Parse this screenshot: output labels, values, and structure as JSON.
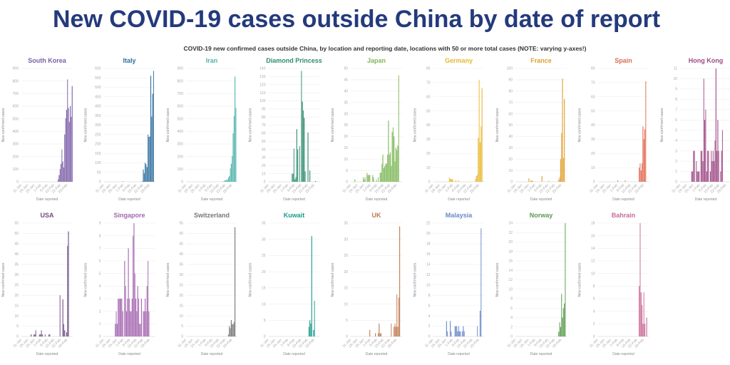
{
  "title": "New COVID-19 cases outside China by date of report",
  "subtitle": "COVID-19 new confirmed cases outside China, by location and reporting date, locations with 50 or more total cases (NOTE: varying y-axes!)",
  "chart_data": {
    "type": "bar",
    "xlabel": "Date reported",
    "ylabel": "New confirmed cases",
    "x_tick_labels": [
      "11-Jan",
      "18-Jan",
      "25-Jan",
      "1-Feb",
      "8-Feb",
      "15-Feb",
      "22-Feb",
      "29-Feb"
    ],
    "categories": [
      "11-Jan",
      "12-Jan",
      "13-Jan",
      "14-Jan",
      "15-Jan",
      "16-Jan",
      "17-Jan",
      "18-Jan",
      "19-Jan",
      "20-Jan",
      "21-Jan",
      "22-Jan",
      "23-Jan",
      "24-Jan",
      "25-Jan",
      "26-Jan",
      "27-Jan",
      "28-Jan",
      "29-Jan",
      "30-Jan",
      "31-Jan",
      "1-Feb",
      "2-Feb",
      "3-Feb",
      "4-Feb",
      "5-Feb",
      "6-Feb",
      "7-Feb",
      "8-Feb",
      "9-Feb",
      "10-Feb",
      "11-Feb",
      "12-Feb",
      "13-Feb",
      "14-Feb",
      "15-Feb",
      "16-Feb",
      "17-Feb",
      "18-Feb",
      "19-Feb",
      "20-Feb",
      "21-Feb",
      "22-Feb",
      "23-Feb",
      "24-Feb",
      "25-Feb",
      "26-Feb",
      "27-Feb",
      "28-Feb",
      "29-Feb",
      "1-Mar",
      "2-Mar",
      "3-Mar",
      "4-Mar",
      "5-Mar"
    ],
    "grid": true,
    "panels": [
      {
        "name": "South Korea",
        "color": "#7b5ea7",
        "ylim": [
          0,
          900
        ],
        "ystep": 100,
        "values": {
          "1-Feb": 1,
          "5-Feb": 1,
          "18-Feb": 1,
          "19-Feb": 20,
          "20-Feb": 53,
          "21-Feb": 100,
          "22-Feb": 142,
          "23-Feb": 256,
          "24-Feb": 161,
          "25-Feb": 114,
          "26-Feb": 376,
          "27-Feb": 505,
          "28-Feb": 571,
          "29-Feb": 813,
          "1-Mar": 586,
          "2-Mar": 476,
          "3-Mar": 600,
          "4-Mar": 516,
          "5-Mar": 760
        }
      },
      {
        "name": "Italy",
        "color": "#2f6f9f",
        "ylim": [
          0,
          600
        ],
        "ystep": 50,
        "values": {
          "31-Jan": 2,
          "21-Feb": 3,
          "22-Feb": 65,
          "23-Feb": 45,
          "24-Feb": 100,
          "25-Feb": 93,
          "26-Feb": 78,
          "27-Feb": 250,
          "28-Feb": 238,
          "29-Feb": 240,
          "1-Mar": 561,
          "2-Mar": 345,
          "3-Mar": 466,
          "4-Mar": 587
        }
      },
      {
        "name": "Iran",
        "color": "#4fb3aa",
        "ylim": [
          0,
          900
        ],
        "ystep": 100,
        "values": {
          "19-Feb": 2,
          "20-Feb": 3,
          "21-Feb": 13,
          "22-Feb": 10,
          "23-Feb": 15,
          "24-Feb": 18,
          "25-Feb": 34,
          "26-Feb": 45,
          "27-Feb": 106,
          "28-Feb": 143,
          "29-Feb": 205,
          "1-Mar": 385,
          "2-Mar": 523,
          "3-Mar": 835,
          "4-Mar": 586
        }
      },
      {
        "name": "Diamond Princess",
        "color": "#2e8b6e",
        "ylim": [
          0,
          140
        ],
        "ystep": 10,
        "values": {
          "5-Feb": 10,
          "6-Feb": 10,
          "7-Feb": 41,
          "8-Feb": 3,
          "9-Feb": 6,
          "10-Feb": 65,
          "11-Feb": 40,
          "13-Feb": 44,
          "15-Feb": 137,
          "16-Feb": 99,
          "17-Feb": 88,
          "18-Feb": 79,
          "19-Feb": 13,
          "22-Feb": 61,
          "24-Feb": 14,
          "1-Mar": 1
        }
      },
      {
        "name": "Japan",
        "color": "#7fb85a",
        "ylim": [
          0,
          50
        ],
        "ystep": 5,
        "values": {
          "15-Jan": 1,
          "24-Jan": 2,
          "25-Jan": 1,
          "26-Jan": 2,
          "28-Jan": 4,
          "29-Jan": 3,
          "30-Jan": 3,
          "31-Jan": 3,
          "3-Feb": 3,
          "4-Feb": 2,
          "7-Feb": 1,
          "9-Feb": 2,
          "11-Feb": 4,
          "12-Feb": 4,
          "13-Feb": 8,
          "14-Feb": 12,
          "15-Feb": 6,
          "16-Feb": 7,
          "17-Feb": 8,
          "18-Feb": 8,
          "19-Feb": 12,
          "20-Feb": 27,
          "21-Feb": 12,
          "22-Feb": 13,
          "23-Feb": 7,
          "24-Feb": 22,
          "25-Feb": 24,
          "26-Feb": 20,
          "27-Feb": 9,
          "28-Feb": 15,
          "29-Feb": 14,
          "1-Mar": 16,
          "2-Mar": 47
        }
      },
      {
        "name": "Germany",
        "color": "#e8b830",
        "ylim": [
          0,
          80
        ],
        "ystep": 10,
        "values": {
          "28-Jan": 3,
          "29-Jan": 2,
          "30-Jan": 2,
          "31-Jan": 2,
          "1-Feb": 1,
          "4-Feb": 1,
          "7-Feb": 1,
          "25-Feb": 2,
          "26-Feb": 4,
          "27-Feb": 5,
          "28-Feb": 31,
          "29-Feb": 72,
          "1-Mar": 28,
          "2-Mar": 39,
          "3-Mar": 66
        }
      },
      {
        "name": "France",
        "color": "#e0a030",
        "ylim": [
          0,
          100
        ],
        "ystep": 10,
        "values": {
          "25-Jan": 3,
          "27-Jan": 1,
          "28-Jan": 1,
          "29-Jan": 1,
          "8-Feb": 5,
          "15-Feb": 1,
          "26-Feb": 2,
          "27-Feb": 4,
          "28-Feb": 20,
          "29-Feb": 43,
          "1-Mar": 91,
          "2-Mar": 21,
          "3-Mar": 73
        }
      },
      {
        "name": "Spain",
        "color": "#e06a50",
        "ylim": [
          0,
          80
        ],
        "ystep": 10,
        "values": {
          "1-Feb": 1,
          "9-Feb": 1,
          "24-Feb": 10,
          "25-Feb": 13,
          "26-Feb": 8,
          "27-Feb": 13,
          "28-Feb": 39,
          "29-Feb": 30,
          "1-Mar": 37,
          "2-Mar": 71
        }
      },
      {
        "name": "Hong Kong",
        "color": "#9e4a85",
        "ylim": [
          0,
          11
        ],
        "ystep": 1,
        "values": {
          "23-Jan": 1,
          "24-Jan": 1,
          "25-Jan": 3,
          "26-Jan": 3,
          "28-Jan": 2,
          "29-Jan": 1,
          "30-Jan": 1,
          "31-Jan": 1,
          "2-Feb": 3,
          "3-Feb": 3,
          "4-Feb": 2,
          "5-Feb": 10,
          "6-Feb": 6,
          "7-Feb": 7,
          "8-Feb": 1,
          "9-Feb": 3,
          "10-Feb": 3,
          "12-Feb": 1,
          "13-Feb": 3,
          "14-Feb": 2,
          "15-Feb": 3,
          "16-Feb": 2,
          "17-Feb": 4,
          "18-Feb": 11,
          "19-Feb": 3,
          "20-Feb": 6,
          "21-Feb": 3,
          "23-Feb": 1,
          "24-Feb": 3,
          "25-Feb": 5
        }
      },
      {
        "name": "USA",
        "color": "#6e4d82",
        "ylim": [
          0,
          55
        ],
        "ystep": 5,
        "values": {
          "21-Jan": 1,
          "24-Jan": 1,
          "25-Jan": 1,
          "26-Jan": 3,
          "30-Jan": 1,
          "31-Jan": 1,
          "1-Feb": 3,
          "2-Feb": 1,
          "5-Feb": 1,
          "9-Feb": 1,
          "10-Feb": 1,
          "21-Feb": 20,
          "24-Feb": 18,
          "25-Feb": 6,
          "26-Feb": 3,
          "28-Feb": 2,
          "29-Feb": 44,
          "1-Mar": 51
        }
      },
      {
        "name": "Singapore",
        "color": "#a466b0",
        "ylim": [
          0,
          9
        ],
        "ystep": 1,
        "values": {
          "23-Jan": 1,
          "24-Jan": 2,
          "25-Jan": 1,
          "26-Jan": 3,
          "27-Jan": 3,
          "28-Jan": 3,
          "29-Jan": 3,
          "30-Jan": 3,
          "31-Jan": 2,
          "2-Feb": 6,
          "3-Feb": 4,
          "4-Feb": 2,
          "5-Feb": 3,
          "6-Feb": 7,
          "7-Feb": 3,
          "8-Feb": 2,
          "9-Feb": 2,
          "10-Feb": 3,
          "11-Feb": 8,
          "12-Feb": 9,
          "13-Feb": 5,
          "14-Feb": 3,
          "15-Feb": 2,
          "16-Feb": 4,
          "17-Feb": 3,
          "18-Feb": 1,
          "19-Feb": 1,
          "20-Feb": 3,
          "22-Feb": 2,
          "23-Feb": 2,
          "24-Feb": 3,
          "25-Feb": 2,
          "26-Feb": 4,
          "27-Feb": 6,
          "28-Feb": 2
        }
      },
      {
        "name": "Switzerland",
        "color": "#777777",
        "ylim": [
          0,
          55
        ],
        "ystep": 5,
        "values": {
          "25-Feb": 1,
          "26-Feb": 5,
          "27-Feb": 4,
          "28-Feb": 8,
          "29-Feb": 6,
          "1-Mar": 6,
          "2-Mar": 7,
          "3-Mar": 53
        }
      },
      {
        "name": "Kuwait",
        "color": "#1a9a8a",
        "ylim": [
          0,
          35
        ],
        "ystep": 5,
        "values": {
          "23-Feb": 3,
          "24-Feb": 5,
          "25-Feb": 4,
          "26-Feb": 31,
          "28-Feb": 2,
          "29-Feb": 11
        }
      },
      {
        "name": "UK",
        "color": "#c07a50",
        "ylim": [
          0,
          35
        ],
        "ystep": 5,
        "values": {
          "31-Jan": 2,
          "6-Feb": 1,
          "9-Feb": 1,
          "10-Feb": 4,
          "11-Feb": 1,
          "12-Feb": 1,
          "23-Feb": 4,
          "26-Feb": 3,
          "27-Feb": 4,
          "28-Feb": 3,
          "29-Feb": 13,
          "1-Mar": 3,
          "2-Mar": 12,
          "3-Mar": 34
        }
      },
      {
        "name": "Malaysia",
        "color": "#6a88c8",
        "ylim": [
          0,
          22
        ],
        "ystep": 2,
        "values": {
          "25-Jan": 3,
          "26-Jan": 1,
          "29-Jan": 3,
          "30-Jan": 1,
          "3-Feb": 2,
          "4-Feb": 2,
          "5-Feb": 2,
          "6-Feb": 1,
          "7-Feb": 2,
          "8-Feb": 1,
          "9-Feb": 1,
          "11-Feb": 1,
          "12-Feb": 2,
          "13-Feb": 1,
          "27-Feb": 2,
          "1-Mar": 5,
          "2-Mar": 21
        }
      },
      {
        "name": "Norway",
        "color": "#5a9a50",
        "ylim": [
          0,
          24
        ],
        "ystep": 2,
        "values": {
          "26-Feb": 1,
          "27-Feb": 3,
          "28-Feb": 2,
          "29-Feb": 9,
          "1-Mar": 4,
          "2-Mar": 6,
          "3-Mar": 7,
          "4-Mar": 24
        }
      },
      {
        "name": "Bahrain",
        "color": "#c86a95",
        "ylim": [
          0,
          18
        ],
        "ystep": 2,
        "values": {
          "24-Feb": 8,
          "25-Feb": 18,
          "26-Feb": 7,
          "27-Feb": 5,
          "28-Feb": 2,
          "29-Feb": 7,
          "1-Mar": 2,
          "3-Mar": 3
        }
      }
    ]
  }
}
